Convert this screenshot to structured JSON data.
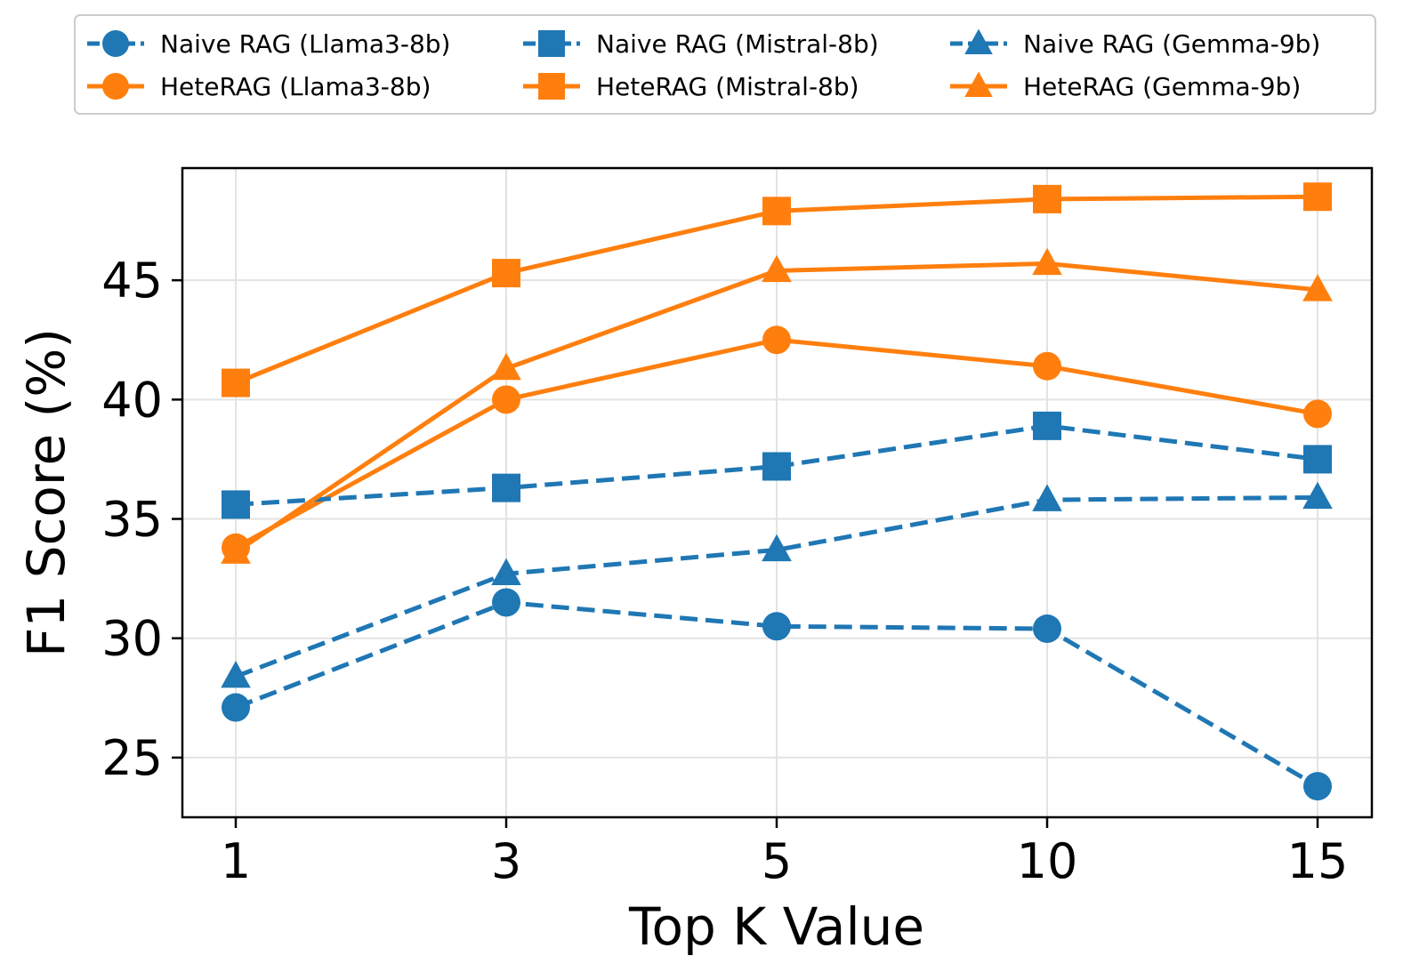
{
  "chart_data": {
    "type": "line",
    "xlabel": "Top K Value",
    "ylabel": "F1 Score (%)",
    "x": [
      1,
      3,
      5,
      10,
      15
    ],
    "x_ticks": [
      "1",
      "3",
      "5",
      "10",
      "15"
    ],
    "x_scale": "categorical-evenly-spaced",
    "ylim": [
      22.5,
      49.7
    ],
    "y_ticks": [
      25,
      30,
      35,
      40,
      45
    ],
    "grid": true,
    "legend_position": "top, above plot, 3 columns",
    "series": [
      {
        "name": "Naive RAG (Llama3-8b)",
        "color": "#1f77b4",
        "linestyle": "dashed",
        "marker": "circle",
        "values": [
          27.1,
          31.5,
          30.5,
          30.4,
          23.8
        ]
      },
      {
        "name": "HeteRAG (Llama3-8b)",
        "color": "#ff7f0e",
        "linestyle": "solid",
        "marker": "circle",
        "values": [
          33.8,
          40.0,
          42.5,
          41.4,
          39.4
        ]
      },
      {
        "name": "Naive RAG (Mistral-8b)",
        "color": "#1f77b4",
        "linestyle": "dashed",
        "marker": "square",
        "values": [
          35.6,
          36.3,
          37.2,
          38.9,
          37.5
        ]
      },
      {
        "name": "HeteRAG (Mistral-8b)",
        "color": "#ff7f0e",
        "linestyle": "solid",
        "marker": "square",
        "values": [
          40.7,
          45.3,
          47.9,
          48.4,
          48.5
        ]
      },
      {
        "name": "Naive RAG (Gemma-9b)",
        "color": "#1f77b4",
        "linestyle": "dashed",
        "marker": "triangle",
        "values": [
          28.4,
          32.7,
          33.7,
          35.8,
          35.9
        ]
      },
      {
        "name": "HeteRAG (Gemma-9b)",
        "color": "#ff7f0e",
        "linestyle": "solid",
        "marker": "triangle",
        "values": [
          33.6,
          41.3,
          45.4,
          45.7,
          44.6
        ]
      }
    ]
  }
}
